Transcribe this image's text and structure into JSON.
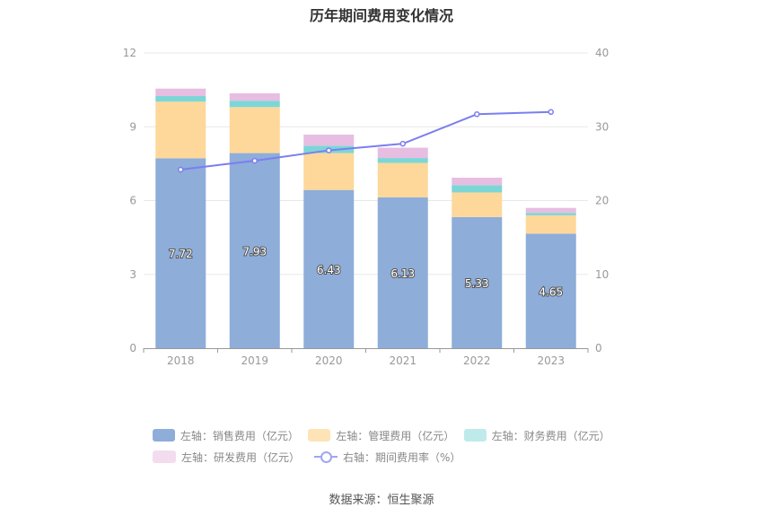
{
  "title": "历年期间费用变化情况",
  "source": "数据来源：恒生聚源",
  "colors": {
    "sales": "#8eadd9",
    "admin": "#fdd89a",
    "finance": "#7dd6d6",
    "rd": "#e7bde2",
    "rate_line": "#7b7ef0",
    "grid": "#e8e8e8",
    "axis": "#999999"
  },
  "chart_data": {
    "type": "bar",
    "stacked": true,
    "categories": [
      "2018",
      "2019",
      "2020",
      "2021",
      "2022",
      "2023"
    ],
    "ylim_left": [
      0,
      12
    ],
    "yticks_left": [
      0,
      3,
      6,
      9,
      12
    ],
    "ylim_right": [
      0,
      40
    ],
    "yticks_right": [
      0,
      10,
      20,
      30,
      40
    ],
    "grid": true,
    "legend_position": "bottom",
    "series": [
      {
        "name": "左轴：销售费用（亿元）",
        "key": "sales",
        "axis": "left",
        "kind": "bar",
        "values": [
          7.72,
          7.93,
          6.43,
          6.13,
          5.33,
          4.65
        ],
        "labels": [
          "7.72",
          "7.93",
          "6.43",
          "6.13",
          "5.33",
          "4.65"
        ]
      },
      {
        "name": "左轴：管理费用（亿元）",
        "key": "admin",
        "axis": "left",
        "kind": "bar",
        "values": [
          2.3,
          1.87,
          1.5,
          1.4,
          1.0,
          0.75
        ]
      },
      {
        "name": "左轴：财务费用（亿元）",
        "key": "finance",
        "axis": "left",
        "kind": "bar",
        "values": [
          0.23,
          0.26,
          0.3,
          0.2,
          0.3,
          0.1
        ]
      },
      {
        "name": "左轴：研发费用（亿元）",
        "key": "rd",
        "axis": "left",
        "kind": "bar",
        "values": [
          0.3,
          0.3,
          0.45,
          0.42,
          0.3,
          0.2
        ]
      },
      {
        "name": "右轴：期间费用率（%）",
        "key": "rate_line",
        "axis": "right",
        "kind": "line",
        "values": [
          24.2,
          25.4,
          26.8,
          27.7,
          31.7,
          32.0
        ]
      }
    ]
  }
}
